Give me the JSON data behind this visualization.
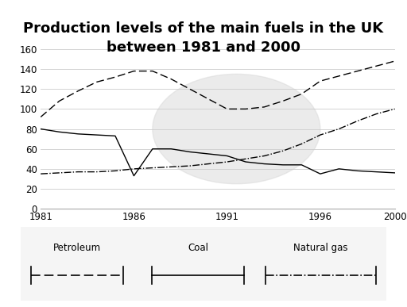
{
  "title": "Production levels of the main fuels in the UK\nbetween 1981 and 2000",
  "years": [
    1981,
    1982,
    1983,
    1984,
    1985,
    1986,
    1987,
    1988,
    1989,
    1990,
    1991,
    1992,
    1993,
    1994,
    1995,
    1996,
    1997,
    1998,
    1999,
    2000
  ],
  "petroleum": [
    80,
    77,
    75,
    74,
    73,
    33,
    60,
    60,
    57,
    55,
    53,
    47,
    45,
    44,
    44,
    35,
    40,
    38,
    37,
    36
  ],
  "coal": [
    92,
    108,
    118,
    127,
    132,
    138,
    138,
    130,
    120,
    110,
    100,
    100,
    102,
    108,
    115,
    128,
    133,
    138,
    143,
    148
  ],
  "natural_gas": [
    35,
    36,
    37,
    37,
    38,
    40,
    41,
    42,
    43,
    45,
    47,
    50,
    53,
    58,
    65,
    74,
    80,
    88,
    95,
    100
  ],
  "ylim": [
    0,
    160
  ],
  "yticks": [
    0,
    20,
    40,
    60,
    80,
    100,
    120,
    140,
    160
  ],
  "xticks": [
    1981,
    1986,
    1991,
    1996,
    2000
  ],
  "background_color": "#ffffff",
  "title_fontsize": 13,
  "legend_box_facecolor": "#f0f0f0",
  "watermark_color": "#d8d8d8",
  "watermark_alpha": 0.5
}
